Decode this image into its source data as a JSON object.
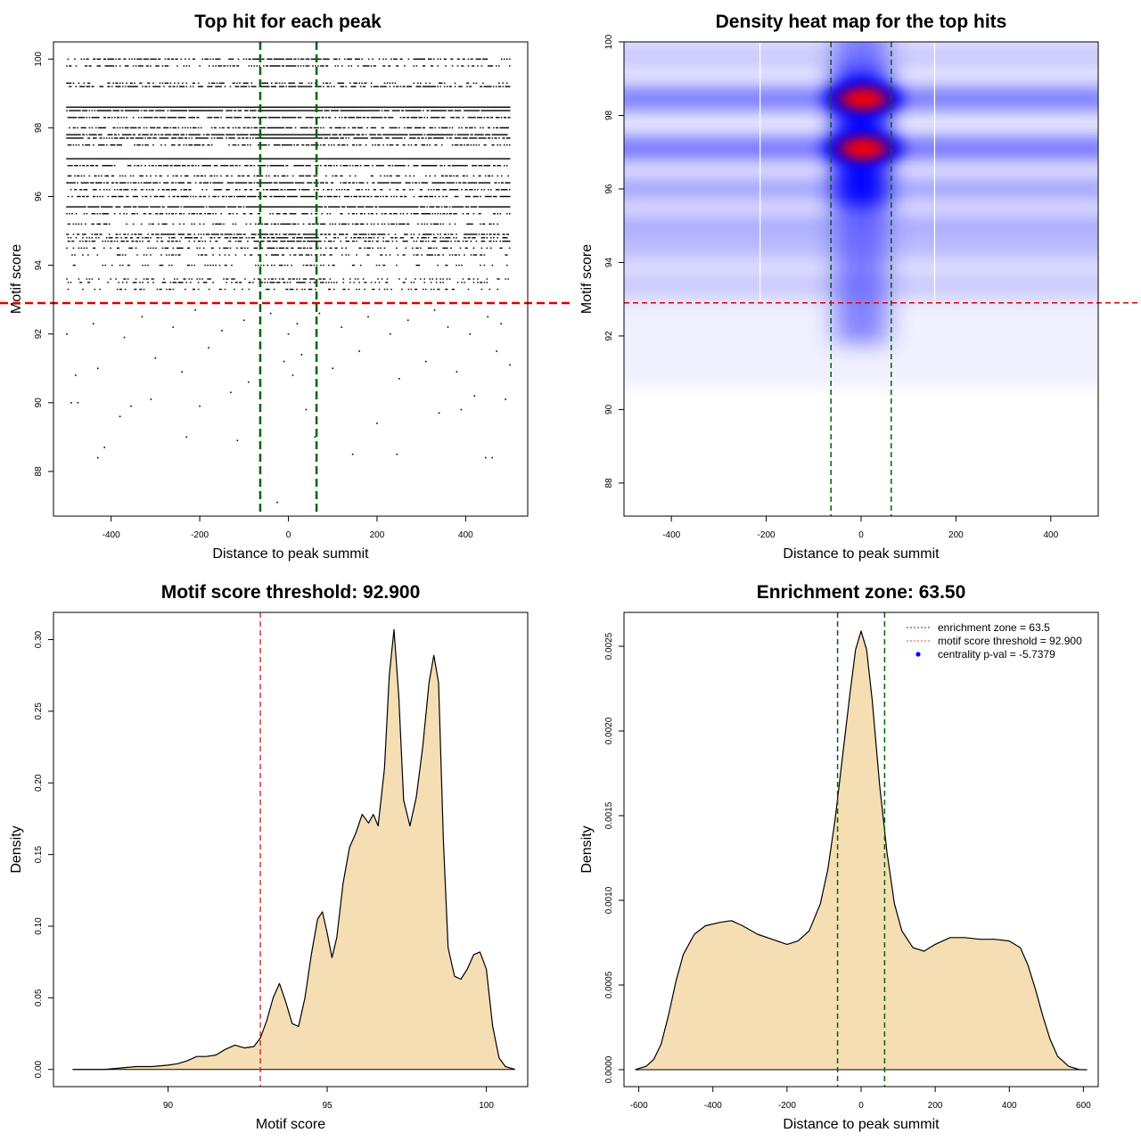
{
  "chart_data": [
    {
      "type": "scatter",
      "title": "Top hit for each peak",
      "xlabel": "Distance to peak summit",
      "ylabel": "Motif score",
      "xlim": [
        -530,
        540
      ],
      "ylim": [
        86.7,
        100.5
      ],
      "x_ticks": [
        -400,
        -200,
        0,
        200,
        400
      ],
      "y_ticks": [
        88,
        90,
        92,
        94,
        96,
        98,
        100
      ],
      "vlines": [
        -63.5,
        63.5
      ],
      "hline": 92.9,
      "colors": {
        "points": "#000000",
        "enrichment_zone": "#006400",
        "threshold": "#dd0000"
      },
      "dense_score_bands": [
        100.0,
        99.8,
        99.3,
        99.2,
        98.6,
        98.5,
        98.3,
        98.0,
        97.8,
        97.7,
        97.5,
        97.1,
        96.9,
        96.6,
        96.4,
        96.2,
        96.0,
        95.7,
        95.5,
        95.2,
        94.9,
        94.8,
        94.7,
        94.5,
        94.3,
        94.0,
        93.6,
        93.5,
        93.3
      ],
      "band_density": [
        0.55,
        0.4,
        0.3,
        0.55,
        1.0,
        0.85,
        0.7,
        0.6,
        0.85,
        0.75,
        0.5,
        1.0,
        0.6,
        0.35,
        0.7,
        0.45,
        0.55,
        0.9,
        0.4,
        0.35,
        0.55,
        0.45,
        0.5,
        0.35,
        0.3,
        0.2,
        0.25,
        0.3,
        0.2
      ],
      "sparse_points": [
        {
          "x": -430,
          "y": 88.4
        },
        {
          "x": -415,
          "y": 88.7
        },
        {
          "x": -230,
          "y": 89.0
        },
        {
          "x": -115,
          "y": 88.9
        },
        {
          "x": -25,
          "y": 87.1
        },
        {
          "x": 60,
          "y": 89.0
        },
        {
          "x": 145,
          "y": 88.5
        },
        {
          "x": 245,
          "y": 88.5
        },
        {
          "x": 445,
          "y": 88.4
        },
        {
          "x": 460,
          "y": 88.4
        },
        {
          "x": -490,
          "y": 90.0
        },
        {
          "x": -475,
          "y": 90.0
        },
        {
          "x": -380,
          "y": 89.6
        },
        {
          "x": -355,
          "y": 89.9
        },
        {
          "x": -310,
          "y": 90.1
        },
        {
          "x": -200,
          "y": 89.9
        },
        {
          "x": -130,
          "y": 90.3
        },
        {
          "x": 40,
          "y": 89.8
        },
        {
          "x": 200,
          "y": 89.4
        },
        {
          "x": 340,
          "y": 89.7
        },
        {
          "x": 390,
          "y": 89.8
        },
        {
          "x": 420,
          "y": 90.2
        },
        {
          "x": 490,
          "y": 90.1
        },
        {
          "x": -480,
          "y": 90.8
        },
        {
          "x": -430,
          "y": 91.0
        },
        {
          "x": -300,
          "y": 91.3
        },
        {
          "x": -240,
          "y": 90.9
        },
        {
          "x": -180,
          "y": 91.6
        },
        {
          "x": -90,
          "y": 90.6
        },
        {
          "x": -10,
          "y": 91.2
        },
        {
          "x": 10,
          "y": 90.8
        },
        {
          "x": 30,
          "y": 91.4
        },
        {
          "x": 100,
          "y": 91.0
        },
        {
          "x": 160,
          "y": 91.5
        },
        {
          "x": 250,
          "y": 90.7
        },
        {
          "x": 310,
          "y": 91.2
        },
        {
          "x": 380,
          "y": 90.9
        },
        {
          "x": 470,
          "y": 91.5
        },
        {
          "x": 500,
          "y": 91.1
        },
        {
          "x": -500,
          "y": 92.0
        },
        {
          "x": -440,
          "y": 92.3
        },
        {
          "x": -370,
          "y": 91.9
        },
        {
          "x": -330,
          "y": 92.5
        },
        {
          "x": -260,
          "y": 92.2
        },
        {
          "x": -210,
          "y": 92.7
        },
        {
          "x": -150,
          "y": 92.1
        },
        {
          "x": -100,
          "y": 92.4
        },
        {
          "x": -40,
          "y": 92.6
        },
        {
          "x": 0,
          "y": 92.0
        },
        {
          "x": 20,
          "y": 92.3
        },
        {
          "x": 70,
          "y": 92.6
        },
        {
          "x": 120,
          "y": 92.2
        },
        {
          "x": 180,
          "y": 92.5
        },
        {
          "x": 230,
          "y": 92.0
        },
        {
          "x": 270,
          "y": 92.4
        },
        {
          "x": 330,
          "y": 92.7
        },
        {
          "x": 360,
          "y": 92.2
        },
        {
          "x": 410,
          "y": 92.0
        },
        {
          "x": 450,
          "y": 92.5
        },
        {
          "x": 480,
          "y": 92.3
        }
      ]
    },
    {
      "type": "heatmap",
      "title": "Density heat map for the top hits",
      "xlabel": "Distance to peak summit",
      "ylabel": "Motif score",
      "xlim": [
        -500,
        500
      ],
      "ylim": [
        87.1,
        100.0
      ],
      "x_ticks": [
        -400,
        -200,
        0,
        200,
        400
      ],
      "y_ticks": [
        88,
        90,
        92,
        94,
        96,
        98,
        100
      ],
      "vlines": [
        -63.5,
        63.5
      ],
      "hline": 92.9,
      "white_gridlines_x": [
        -213,
        155
      ],
      "colors": {
        "low": "#ffffff",
        "mid": "#0000ff",
        "high": "#ff0000",
        "enrichment_zone": "#006400",
        "threshold": "#dd0000"
      },
      "density_bands": [
        {
          "score": 98.45,
          "intensity": 0.75,
          "hot": true
        },
        {
          "score": 97.1,
          "intensity": 0.8,
          "hot": true
        },
        {
          "score": 96.0,
          "intensity": 0.45,
          "hot": false
        },
        {
          "score": 95.0,
          "intensity": 0.4,
          "hot": false
        },
        {
          "score": 94.4,
          "intensity": 0.3,
          "hot": false
        },
        {
          "score": 99.6,
          "intensity": 0.2,
          "hot": false
        },
        {
          "score": 93.4,
          "intensity": 0.2,
          "hot": false
        }
      ]
    },
    {
      "type": "area",
      "title": "Motif score threshold: 92.900",
      "xlabel": "Motif score",
      "ylabel": "Density",
      "xlim": [
        86.4,
        101.3
      ],
      "ylim": [
        -0.012,
        0.319
      ],
      "x_ticks": [
        90,
        95,
        100
      ],
      "y_ticks": [
        0.0,
        0.05,
        0.1,
        0.15,
        0.2,
        0.25,
        0.3
      ],
      "y_tick_labels": [
        "0.00",
        "0.05",
        "0.10",
        "0.15",
        "0.20",
        "0.25",
        "0.30"
      ],
      "vline": 92.9,
      "colors": {
        "fill": "#f5deb3",
        "line": "#000000",
        "threshold": "#c02020"
      },
      "x": [
        87.0,
        88.0,
        88.5,
        89.0,
        89.5,
        90.0,
        90.3,
        90.6,
        90.9,
        91.2,
        91.5,
        91.8,
        92.1,
        92.4,
        92.7,
        92.9,
        93.1,
        93.3,
        93.5,
        93.7,
        93.9,
        94.1,
        94.3,
        94.5,
        94.7,
        94.85,
        95.0,
        95.15,
        95.3,
        95.5,
        95.7,
        95.9,
        96.1,
        96.3,
        96.45,
        96.6,
        96.8,
        96.95,
        97.1,
        97.25,
        97.4,
        97.6,
        97.8,
        98.0,
        98.2,
        98.35,
        98.5,
        98.65,
        98.8,
        99.0,
        99.2,
        99.4,
        99.6,
        99.8,
        100.0,
        100.2,
        100.4,
        100.6,
        100.9
      ],
      "y": [
        0.0,
        0.0,
        0.001,
        0.002,
        0.002,
        0.003,
        0.004,
        0.006,
        0.009,
        0.009,
        0.01,
        0.014,
        0.017,
        0.015,
        0.016,
        0.022,
        0.034,
        0.05,
        0.06,
        0.047,
        0.032,
        0.03,
        0.05,
        0.08,
        0.105,
        0.11,
        0.095,
        0.078,
        0.092,
        0.13,
        0.155,
        0.165,
        0.178,
        0.172,
        0.178,
        0.17,
        0.21,
        0.275,
        0.307,
        0.26,
        0.188,
        0.17,
        0.19,
        0.225,
        0.27,
        0.289,
        0.27,
        0.16,
        0.085,
        0.065,
        0.063,
        0.07,
        0.08,
        0.082,
        0.07,
        0.03,
        0.008,
        0.002,
        0.0
      ]
    },
    {
      "type": "area",
      "title": "Enrichment zone: 63.50",
      "xlabel": "Distance to peak summit",
      "ylabel": "Density",
      "xlim": [
        -640,
        640
      ],
      "ylim": [
        -0.0001,
        0.0027
      ],
      "x_ticks": [
        -600,
        -400,
        -200,
        0,
        200,
        400,
        600
      ],
      "y_ticks": [
        0.0,
        0.0005,
        0.001,
        0.0015,
        0.002,
        0.0025
      ],
      "y_tick_labels": [
        "0.0000",
        "0.0005",
        "0.0010",
        "0.0015",
        "0.0020",
        "0.0025"
      ],
      "vlines": [
        -63.5,
        63.5
      ],
      "colors": {
        "fill": "#f5deb3",
        "line": "#000000",
        "enrichment_zone": "#006400",
        "threshold": "#ff4040",
        "pval_marker": "#0000ff"
      },
      "x": [
        -610,
        -580,
        -560,
        -540,
        -520,
        -500,
        -480,
        -450,
        -420,
        -380,
        -350,
        -320,
        -280,
        -240,
        -200,
        -170,
        -140,
        -110,
        -90,
        -70,
        -50,
        -30,
        -15,
        0,
        15,
        30,
        50,
        70,
        90,
        110,
        140,
        170,
        200,
        240,
        280,
        320,
        360,
        400,
        430,
        450,
        470,
        490,
        510,
        530,
        560,
        590,
        610
      ],
      "y": [
        0.0,
        2e-05,
        6e-05,
        0.00015,
        0.00032,
        0.00052,
        0.00068,
        0.0008,
        0.00085,
        0.00087,
        0.00088,
        0.00085,
        0.0008,
        0.00077,
        0.00074,
        0.00076,
        0.00082,
        0.00098,
        0.00118,
        0.00148,
        0.00185,
        0.00222,
        0.00248,
        0.00259,
        0.00248,
        0.00218,
        0.00168,
        0.00128,
        0.00098,
        0.00082,
        0.00072,
        0.0007,
        0.00074,
        0.00078,
        0.00078,
        0.00077,
        0.00077,
        0.00076,
        0.00072,
        0.00062,
        0.00048,
        0.00032,
        0.00018,
        8e-05,
        2e-05,
        0.0,
        0.0
      ],
      "legend": {
        "position": "top-right",
        "items": [
          {
            "label": "enrichment zone = 63.5",
            "style": "dotted-line",
            "color": "#006400"
          },
          {
            "label": "motif score threshold = 92.900",
            "style": "dotted-line",
            "color": "#ff4040"
          },
          {
            "label": "centrality p-val = -5.7379",
            "style": "dot",
            "color": "#0000ff"
          }
        ]
      }
    }
  ]
}
